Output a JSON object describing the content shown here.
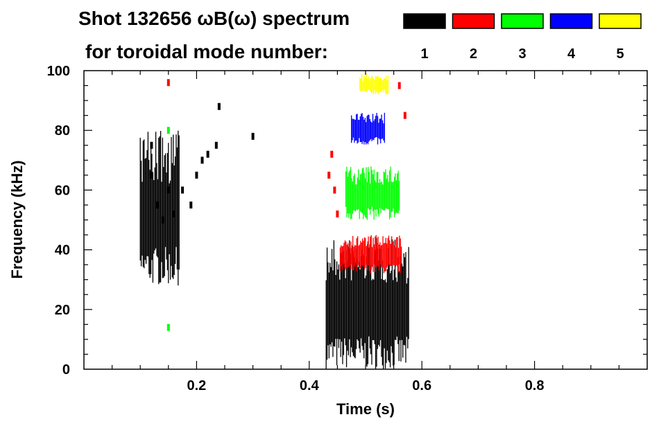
{
  "chart_data": {
    "type": "heatmap",
    "title": "Shot 132656 ωB(ω) spectrum",
    "subtitle": "for toroidal mode number:",
    "xlabel": "Time (s)",
    "ylabel": "Frequency (kHz)",
    "xlim": [
      0.0,
      1.0
    ],
    "ylim": [
      0,
      100
    ],
    "x_ticks": [
      0.2,
      0.4,
      0.6,
      0.8
    ],
    "x_tick_labels": [
      "0.2",
      "0.4",
      "0.6",
      "0.8"
    ],
    "y_ticks": [
      0,
      20,
      40,
      60,
      80,
      100
    ],
    "y_tick_labels": [
      "0",
      "20",
      "40",
      "60",
      "80",
      "100"
    ],
    "grid": false,
    "legend": {
      "placement": "top-right",
      "entries": [
        {
          "label": "1",
          "color": "#000000"
        },
        {
          "label": "2",
          "color": "#ff0000"
        },
        {
          "label": "3",
          "color": "#00ff00"
        },
        {
          "label": "4",
          "color": "#0000ff"
        },
        {
          "label": "5",
          "color": "#ffff00"
        }
      ]
    },
    "series": [
      {
        "name": "1",
        "color": "#000000",
        "regions": [
          {
            "t_start": 0.43,
            "t_end": 0.578,
            "f_low": 0,
            "f_high": 44
          },
          {
            "t_start": 0.1,
            "t_end": 0.17,
            "f_low": 28,
            "f_high": 80
          }
        ],
        "points": [
          [
            0.13,
            55
          ],
          [
            0.14,
            50
          ],
          [
            0.15,
            60
          ],
          [
            0.16,
            52
          ],
          [
            0.175,
            60
          ],
          [
            0.19,
            55
          ],
          [
            0.2,
            65
          ],
          [
            0.21,
            70
          ],
          [
            0.22,
            72
          ],
          [
            0.235,
            75
          ],
          [
            0.24,
            88
          ],
          [
            0.3,
            78
          ],
          [
            0.12,
            75
          ],
          [
            0.12,
            65
          ]
        ]
      },
      {
        "name": "2",
        "color": "#ff0000",
        "regions": [
          {
            "t_start": 0.455,
            "t_end": 0.565,
            "f_low": 32,
            "f_high": 45
          }
        ],
        "points": [
          [
            0.435,
            65
          ],
          [
            0.44,
            72
          ],
          [
            0.445,
            60
          ],
          [
            0.45,
            52
          ],
          [
            0.56,
            95
          ],
          [
            0.57,
            85
          ],
          [
            0.15,
            96
          ]
        ]
      },
      {
        "name": "3",
        "color": "#00ff00",
        "regions": [
          {
            "t_start": 0.465,
            "t_end": 0.56,
            "f_low": 50,
            "f_high": 68
          }
        ],
        "points": [
          [
            0.15,
            14
          ],
          [
            0.15,
            80
          ]
        ]
      },
      {
        "name": "4",
        "color": "#0000ff",
        "regions": [
          {
            "t_start": 0.475,
            "t_end": 0.535,
            "f_low": 75,
            "f_high": 86
          }
        ],
        "points": []
      },
      {
        "name": "5",
        "color": "#ffff00",
        "regions": [
          {
            "t_start": 0.49,
            "t_end": 0.54,
            "f_low": 92,
            "f_high": 99
          }
        ],
        "points": []
      }
    ]
  }
}
